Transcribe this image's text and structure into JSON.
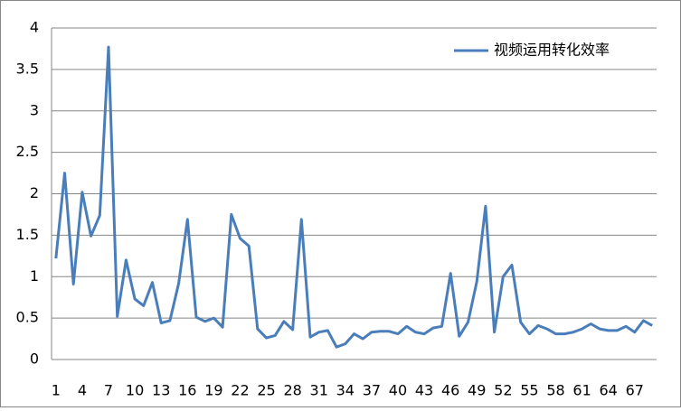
{
  "chart_data": {
    "type": "line",
    "categories": [
      1,
      null,
      null,
      4,
      null,
      null,
      7,
      null,
      null,
      10,
      null,
      null,
      13,
      null,
      null,
      16,
      null,
      null,
      19,
      null,
      null,
      22,
      null,
      null,
      25,
      null,
      null,
      28,
      null,
      null,
      31,
      null,
      null,
      34,
      null,
      null,
      37,
      null,
      null,
      40,
      null,
      null,
      43,
      null,
      null,
      46,
      null,
      null,
      49,
      null,
      null,
      52,
      null,
      null,
      55,
      null,
      null,
      58,
      null,
      null,
      61,
      null,
      null,
      64,
      null,
      null,
      67,
      null,
      null
    ],
    "series": [
      {
        "name": "视频运用转化效率",
        "color": "#4a7ebb",
        "values": [
          1.22,
          2.25,
          0.91,
          2.02,
          1.49,
          1.74,
          3.77,
          0.52,
          1.2,
          0.73,
          0.65,
          0.93,
          0.44,
          0.47,
          0.92,
          1.69,
          0.51,
          0.46,
          0.5,
          0.39,
          1.75,
          1.46,
          1.37,
          0.37,
          0.26,
          0.29,
          0.46,
          0.36,
          1.69,
          0.27,
          0.33,
          0.35,
          0.15,
          0.19,
          0.31,
          0.25,
          0.33,
          0.34,
          0.34,
          0.31,
          0.4,
          0.33,
          0.31,
          0.38,
          0.4,
          1.04,
          0.28,
          0.45,
          0.94,
          1.85,
          0.33,
          1.0,
          1.14,
          0.45,
          0.31,
          0.41,
          0.37,
          0.31,
          0.31,
          0.33,
          0.37,
          0.43,
          0.37,
          0.35,
          0.35,
          0.4,
          0.33,
          0.47,
          0.41
        ]
      }
    ],
    "ylim": [
      0,
      4
    ],
    "yticks": [
      0,
      0.5,
      1,
      1.5,
      2,
      2.5,
      3,
      3.5,
      4
    ],
    "grid": true,
    "legend": "top-right"
  }
}
